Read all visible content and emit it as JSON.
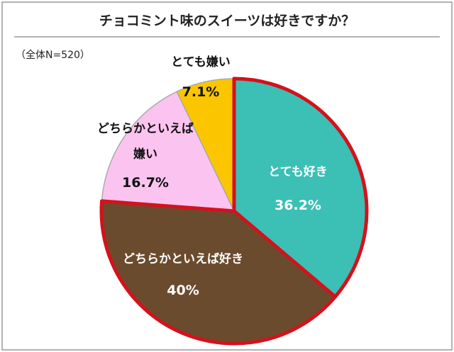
{
  "chart_data": {
    "type": "pie",
    "title": "チョコミント味のスイーツは好きですか？",
    "subtitle": "（全体N=520）",
    "categories": [
      "とても好き",
      "どちらかといえば好き",
      "どちらかといえば嫌い",
      "とても嫌い"
    ],
    "values": [
      36.2,
      40,
      16.7,
      7.1
    ],
    "value_labels": [
      "36.2%",
      "40%",
      "16.7%",
      "7.1%"
    ],
    "colors": [
      "#3cbfb4",
      "#6b4b2e",
      "#fbc4f0",
      "#fbc600"
    ],
    "edge_colors": [
      "#d3121c",
      "#d3121c",
      "#aaaaaa",
      "#aaaaaa"
    ],
    "label_colors": [
      "#ffffff",
      "#ffffff",
      "#111111",
      "#111111"
    ]
  }
}
